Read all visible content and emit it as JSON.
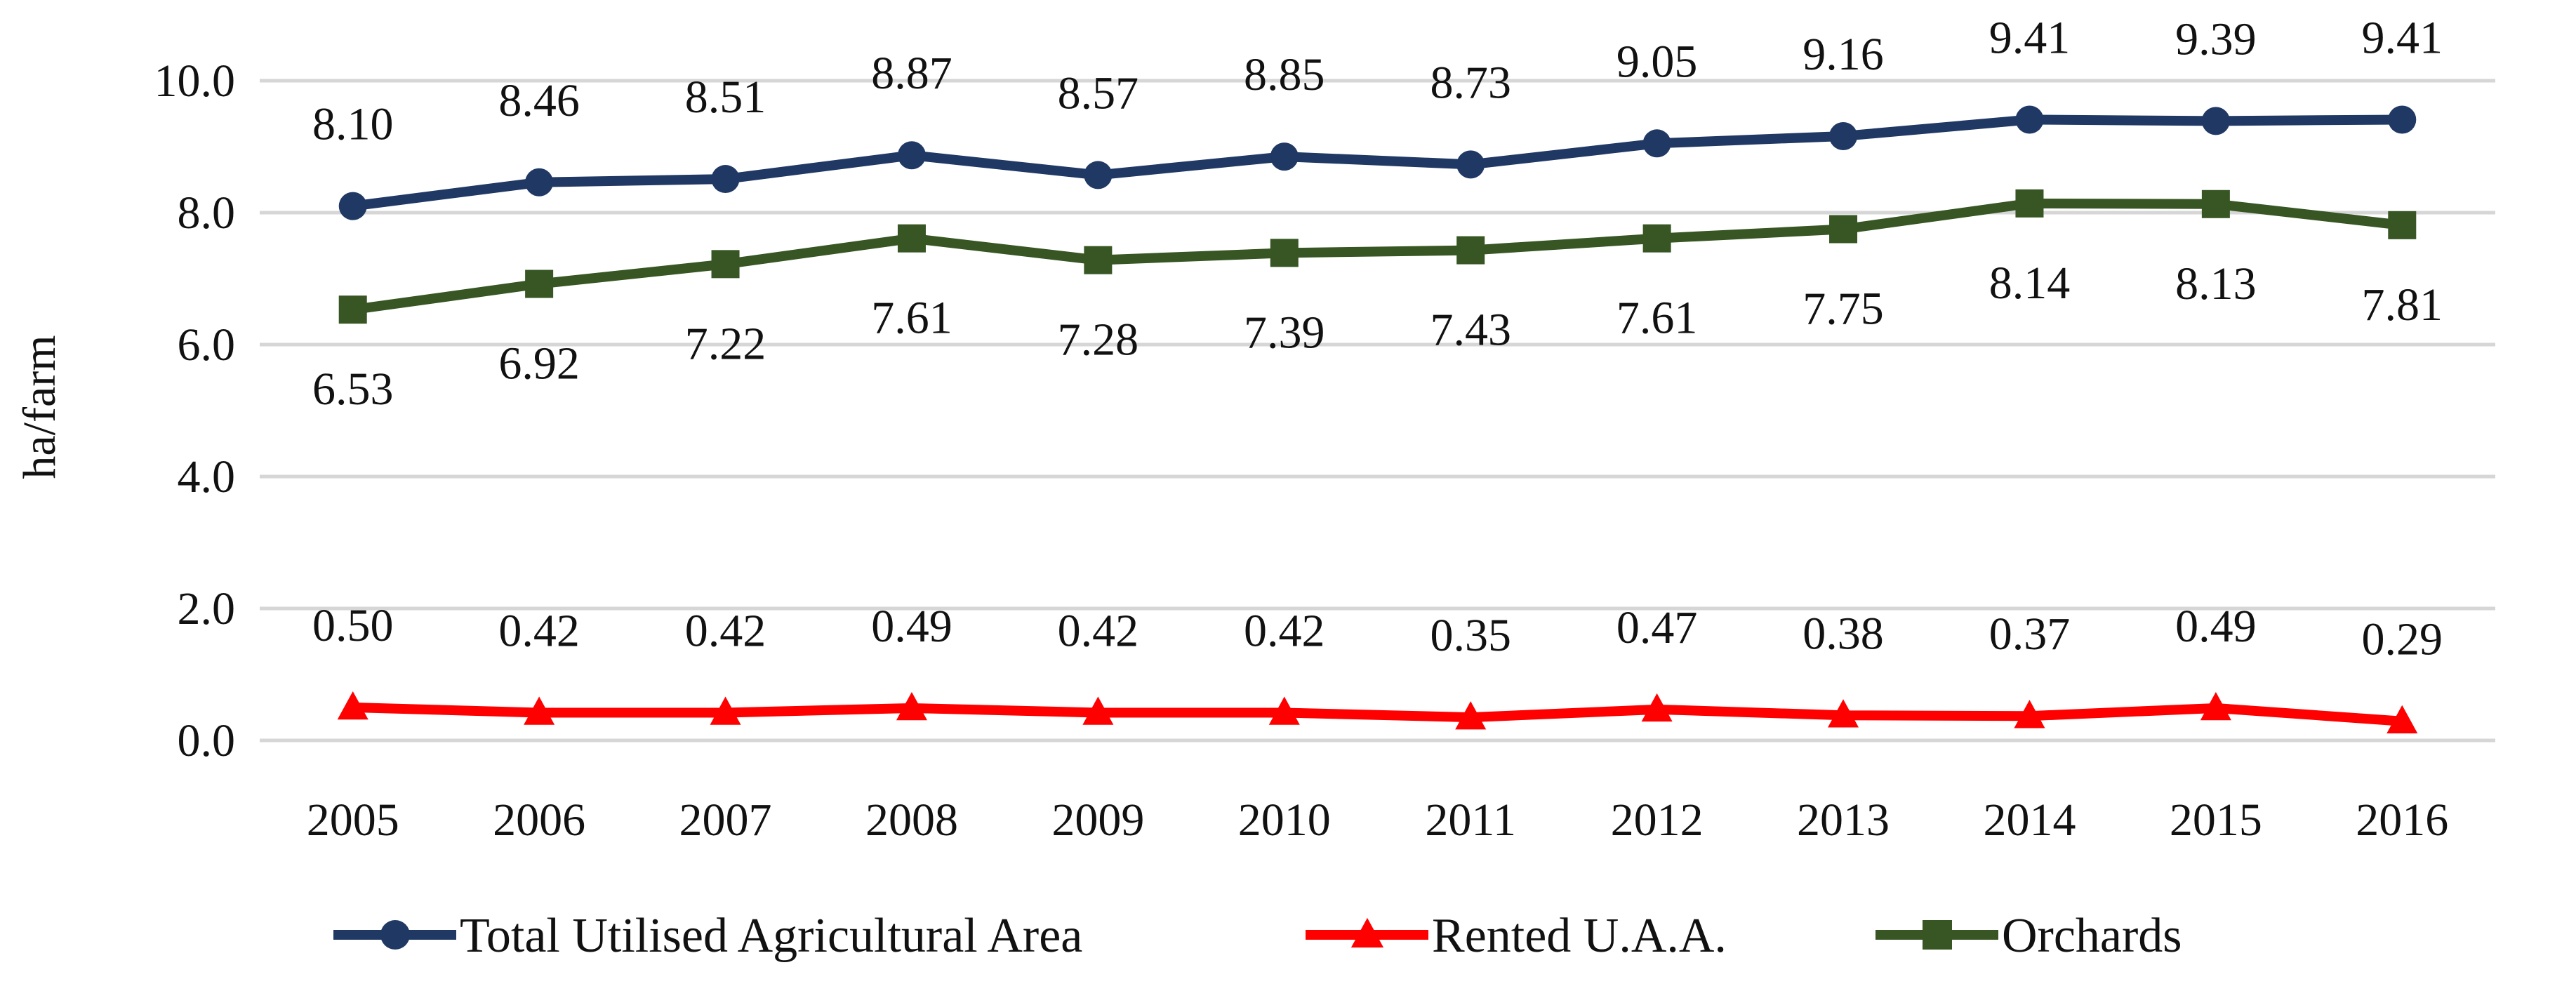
{
  "chart_data": {
    "type": "line",
    "title": "",
    "xlabel": "",
    "ylabel": "ha/farm",
    "ylim": [
      0,
      10
    ],
    "yticks": [
      "0.0",
      "2.0",
      "4.0",
      "6.0",
      "8.0",
      "10.0"
    ],
    "grid": true,
    "legend_position": "bottom",
    "categories": [
      "2005",
      "2006",
      "2007",
      "2008",
      "2009",
      "2010",
      "2011",
      "2012",
      "2013",
      "2014",
      "2015",
      "2016"
    ],
    "series": [
      {
        "name": "Total Utilised Agricultural Area",
        "color": "#203864",
        "marker": "circle",
        "label_position": "above",
        "values": [
          8.1,
          8.46,
          8.51,
          8.87,
          8.57,
          8.85,
          8.73,
          9.05,
          9.16,
          9.41,
          9.39,
          9.41
        ],
        "labels": [
          "8.10",
          "8.46",
          "8.51",
          "8.87",
          "8.57",
          "8.85",
          "8.73",
          "9.05",
          "9.16",
          "9.41",
          "9.39",
          "9.41"
        ]
      },
      {
        "name": "Rented U.A.A.",
        "color": "#ff0000",
        "marker": "triangle",
        "label_position": "above",
        "values": [
          0.5,
          0.42,
          0.42,
          0.49,
          0.42,
          0.42,
          0.35,
          0.47,
          0.38,
          0.37,
          0.49,
          0.29
        ],
        "labels": [
          "0.50",
          "0.42",
          "0.42",
          "0.49",
          "0.42",
          "0.42",
          "0.35",
          "0.47",
          "0.38",
          "0.37",
          "0.49",
          "0.29"
        ]
      },
      {
        "name": "Orchards",
        "color": "#375623",
        "marker": "square",
        "label_position": "below",
        "values": [
          6.53,
          6.92,
          7.22,
          7.61,
          7.28,
          7.39,
          7.43,
          7.61,
          7.75,
          8.14,
          8.13,
          7.81
        ],
        "labels": [
          "6.53",
          "6.92",
          "7.22",
          "7.61",
          "7.28",
          "7.39",
          "7.43",
          "7.61",
          "7.75",
          "8.14",
          "8.13",
          "7.81"
        ]
      }
    ]
  }
}
